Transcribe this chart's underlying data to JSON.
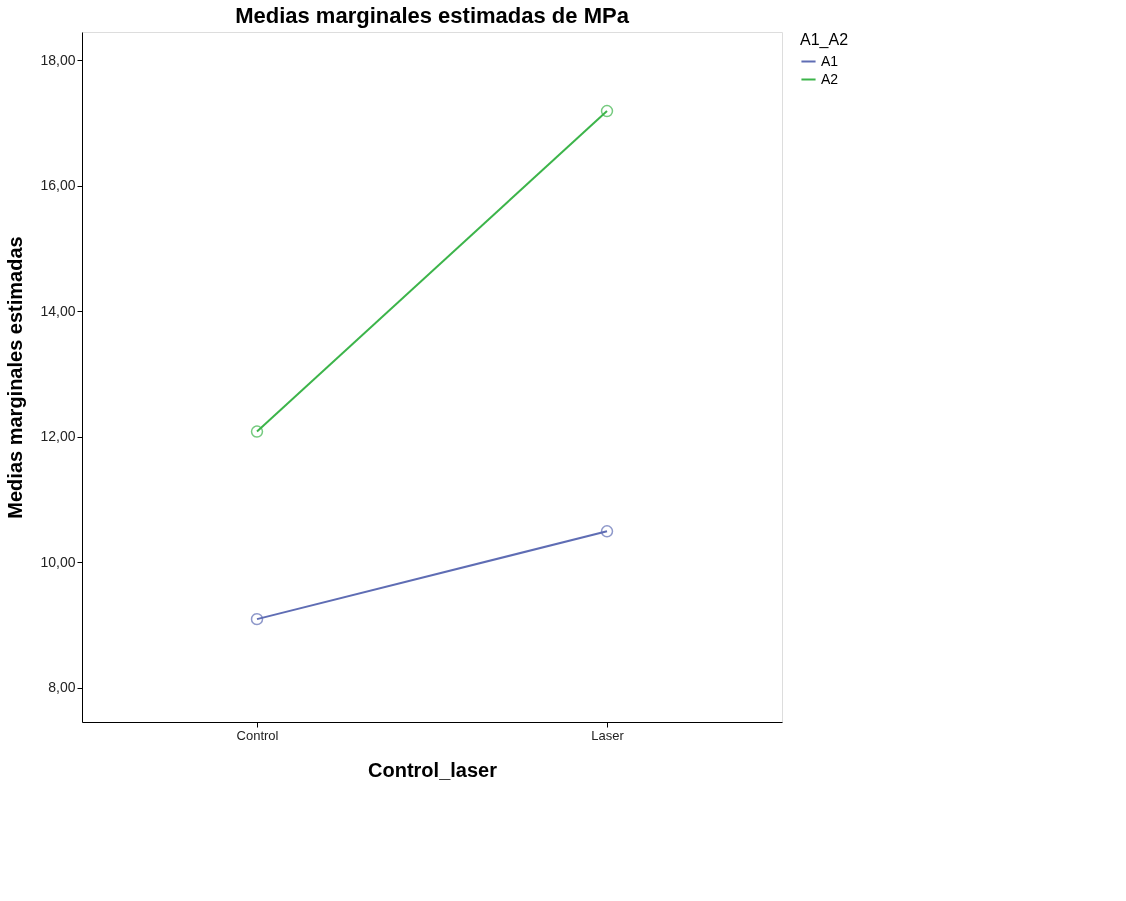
{
  "chart_data": {
    "type": "line",
    "title": "Medias marginales estimadas de MPa",
    "xlabel": "Control_laser",
    "ylabel": "Medias marginales estimadas",
    "legend_title": "A1_A2",
    "categories": [
      "Control",
      "Laser"
    ],
    "series": [
      {
        "name": "A1",
        "color": "#5f6db4",
        "values": [
          9.09,
          10.49
        ]
      },
      {
        "name": "A2",
        "color": "#3cb44a",
        "values": [
          12.08,
          17.19
        ]
      }
    ],
    "ylim": [
      7.45,
      18.45
    ],
    "yticks": [
      {
        "value": 8,
        "label": "8,00"
      },
      {
        "value": 10,
        "label": "10,00"
      },
      {
        "value": 12,
        "label": "12,00"
      },
      {
        "value": 14,
        "label": "14,00"
      },
      {
        "value": 16,
        "label": "16,00"
      },
      {
        "value": 18,
        "label": "18,00"
      }
    ],
    "marker": "circle",
    "line_style": "solid",
    "grid": false,
    "legend": "top right"
  }
}
